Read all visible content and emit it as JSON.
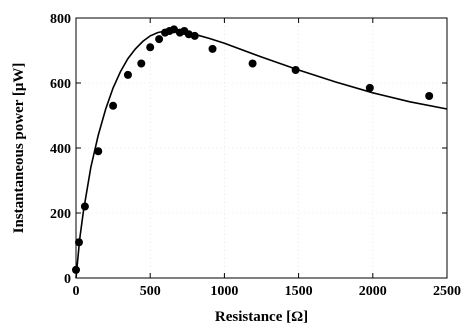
{
  "chart_data": {
    "type": "scatter",
    "title": "",
    "xlabel": "Resistance [Ω]",
    "ylabel": "Instantaneous power [μW]",
    "xlim": [
      0,
      2500
    ],
    "ylim": [
      0,
      800
    ],
    "x_ticks": [
      0,
      500,
      1000,
      1500,
      2000,
      2500
    ],
    "y_ticks": [
      0,
      200,
      400,
      600,
      800
    ],
    "grid": true,
    "legend": "none",
    "colors": {
      "markers": "#000000",
      "line": "#000000",
      "grid": "#d9d9d9"
    },
    "series": [
      {
        "type": "scatter",
        "x": [
          0,
          20,
          60,
          150,
          250,
          350,
          440,
          500,
          560,
          600,
          630,
          660,
          700,
          730,
          760,
          800,
          920,
          1190,
          1480,
          1980,
          2380
        ],
        "y": [
          25,
          110,
          220,
          390,
          530,
          625,
          660,
          710,
          735,
          755,
          760,
          765,
          755,
          760,
          750,
          745,
          705,
          660,
          640,
          585,
          560
        ]
      },
      {
        "type": "line",
        "x": [
          0,
          25,
          50,
          100,
          150,
          200,
          250,
          300,
          350,
          400,
          450,
          500,
          550,
          600,
          650,
          700,
          800,
          900,
          1000,
          1250,
          1500,
          1750,
          2000,
          2250,
          2500
        ],
        "y": [
          0,
          120,
          205,
          340,
          440,
          520,
          585,
          635,
          675,
          705,
          728,
          745,
          755,
          760,
          762,
          760,
          750,
          737,
          722,
          680,
          640,
          603,
          570,
          542,
          520
        ]
      }
    ]
  }
}
